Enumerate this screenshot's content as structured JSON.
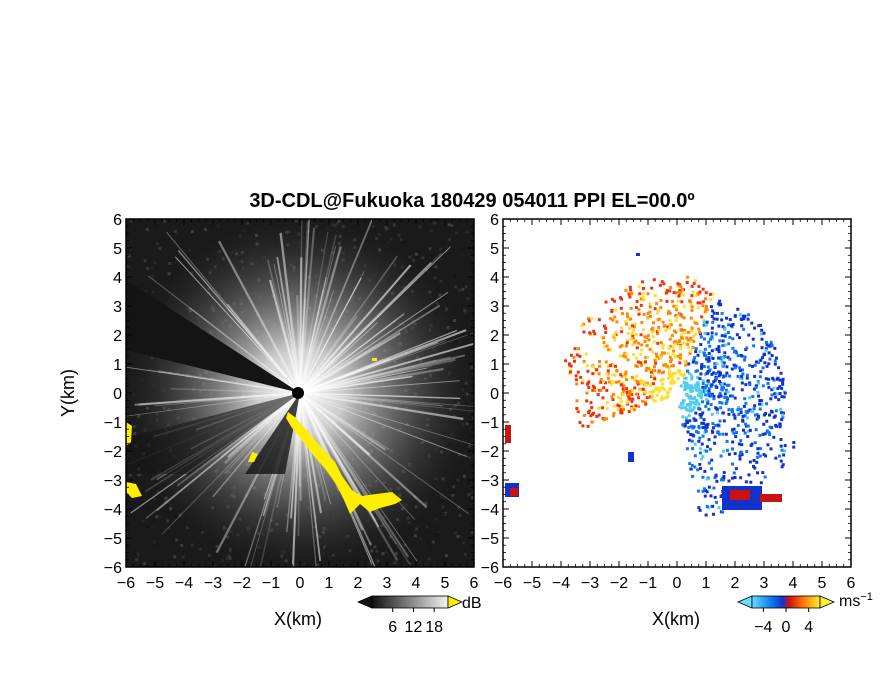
{
  "chart_data": [
    {
      "type": "heatmap",
      "title": "3D-CDL@Fukuoka 180429 054011 PPI EL=00.0º",
      "xlabel": "X(km)",
      "ylabel": "Y(km)",
      "xlim": [
        -6,
        6
      ],
      "ylim": [
        -6,
        6
      ],
      "x_ticks": [
        "−6",
        "−5",
        "−4",
        "−3",
        "−2",
        "−1",
        "0",
        "1",
        "2",
        "3",
        "4",
        "5",
        "6"
      ],
      "y_ticks": [
        "6",
        "5",
        "4",
        "3",
        "2",
        "1",
        "0",
        "−1",
        "−2",
        "−3",
        "−4",
        "−5",
        "−6"
      ],
      "colormap": "grayscale",
      "highlight_color": "#ffee00",
      "colorbar": {
        "unit": "dB",
        "ticks": [
          "6",
          "12",
          "18"
        ],
        "tick_values": [
          6,
          12,
          18
        ],
        "range": [
          0,
          22
        ]
      }
    },
    {
      "type": "heatmap",
      "xlabel": "X(km)",
      "xlim": [
        -6,
        6
      ],
      "ylim": [
        -6,
        6
      ],
      "x_ticks": [
        "−6",
        "−5",
        "−4",
        "−3",
        "−2",
        "−1",
        "0",
        "1",
        "2",
        "3",
        "4",
        "5",
        "6"
      ],
      "y_ticks": [
        "6",
        "5",
        "4",
        "3",
        "2",
        "1",
        "0",
        "−1",
        "−2",
        "−3",
        "−4",
        "−5",
        "−6"
      ],
      "colormap": "diverging cyan-blue-red-yellow",
      "colorbar": {
        "unit": "ms",
        "unit_exp": "−1",
        "ticks": [
          "−4",
          "0",
          "4"
        ],
        "tick_values": [
          -4,
          0,
          4
        ],
        "range": [
          -6,
          6
        ]
      }
    }
  ]
}
